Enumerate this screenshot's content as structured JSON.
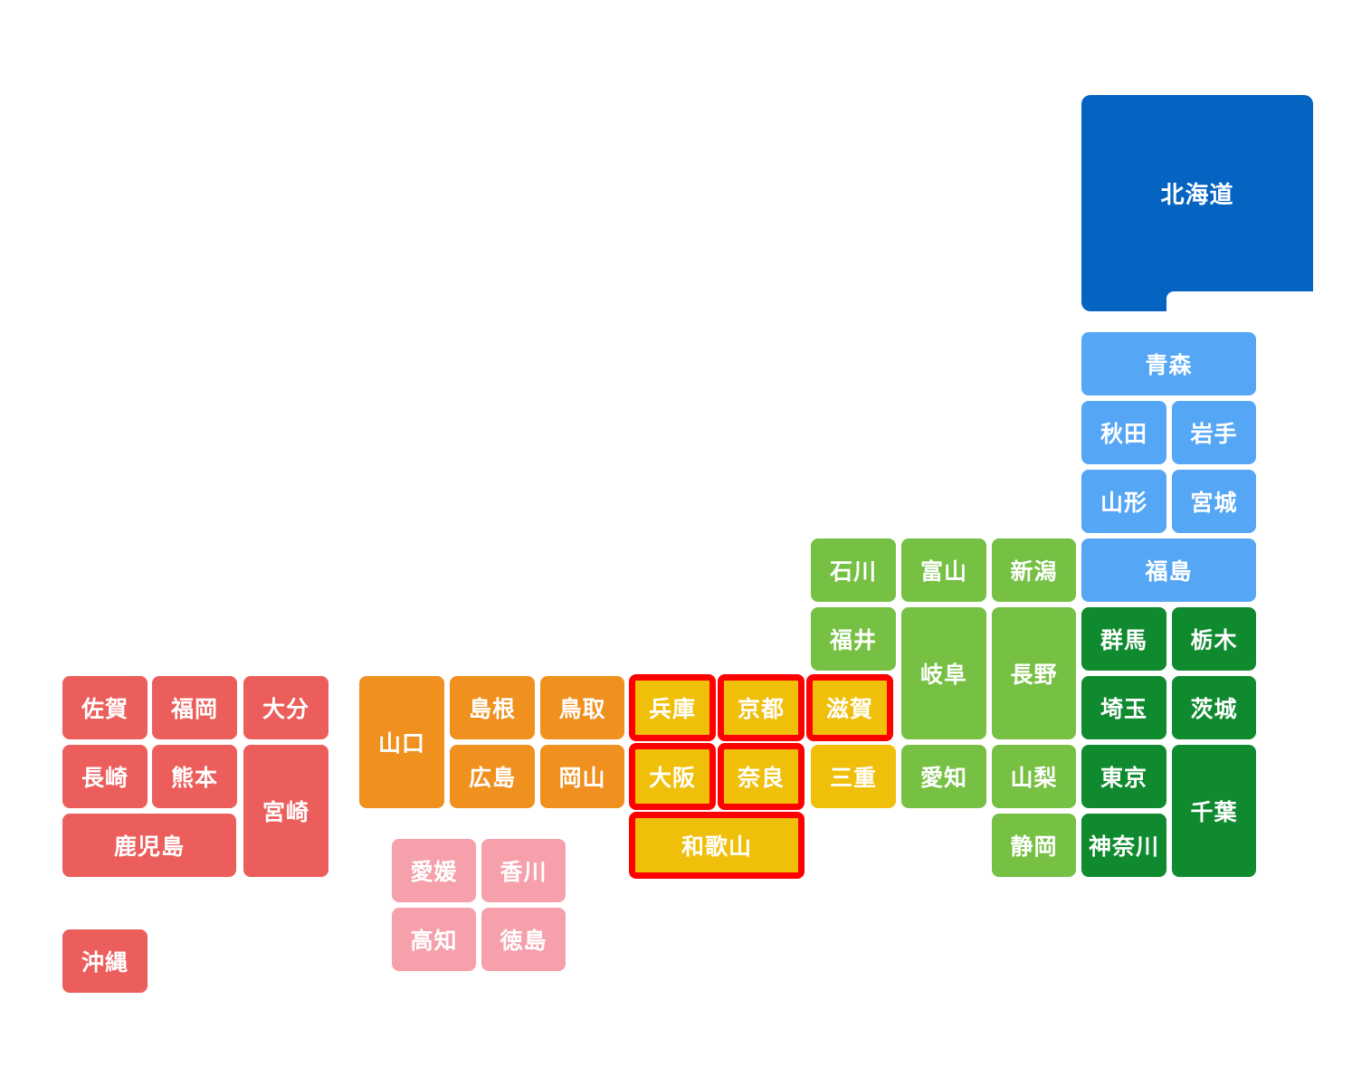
{
  "map": {
    "region_colors": {
      "hokkaido": "#0563C1",
      "tohoku": "#55A6F5",
      "kanto": "#0F8A2E",
      "chubu": "#76C043",
      "kinki": "#F0BF0A",
      "chugoku": "#F0901F",
      "shikoku": "#F5A0AB",
      "kyushu": "#EC5E5B"
    },
    "selected_border_color": "#FF0000",
    "prefectures": [
      {
        "key": "hokkaido",
        "label": "北海道",
        "region": "hokkaido",
        "selected": false
      },
      {
        "key": "aomori",
        "label": "青森",
        "region": "tohoku",
        "selected": false
      },
      {
        "key": "akita",
        "label": "秋田",
        "region": "tohoku",
        "selected": false
      },
      {
        "key": "iwate",
        "label": "岩手",
        "region": "tohoku",
        "selected": false
      },
      {
        "key": "yamagata",
        "label": "山形",
        "region": "tohoku",
        "selected": false
      },
      {
        "key": "miyagi",
        "label": "宮城",
        "region": "tohoku",
        "selected": false
      },
      {
        "key": "fukushima",
        "label": "福島",
        "region": "tohoku",
        "selected": false
      },
      {
        "key": "ishikawa",
        "label": "石川",
        "region": "chubu",
        "selected": false
      },
      {
        "key": "toyama",
        "label": "富山",
        "region": "chubu",
        "selected": false
      },
      {
        "key": "niigata",
        "label": "新潟",
        "region": "chubu",
        "selected": false
      },
      {
        "key": "fukui",
        "label": "福井",
        "region": "chubu",
        "selected": false
      },
      {
        "key": "gifu",
        "label": "岐阜",
        "region": "chubu",
        "selected": false
      },
      {
        "key": "nagano",
        "label": "長野",
        "region": "chubu",
        "selected": false
      },
      {
        "key": "aichi",
        "label": "愛知",
        "region": "chubu",
        "selected": false
      },
      {
        "key": "yamanashi",
        "label": "山梨",
        "region": "chubu",
        "selected": false
      },
      {
        "key": "shizuoka",
        "label": "静岡",
        "region": "chubu",
        "selected": false
      },
      {
        "key": "gunma",
        "label": "群馬",
        "region": "kanto",
        "selected": false
      },
      {
        "key": "tochigi",
        "label": "栃木",
        "region": "kanto",
        "selected": false
      },
      {
        "key": "saitama",
        "label": "埼玉",
        "region": "kanto",
        "selected": false
      },
      {
        "key": "ibaraki",
        "label": "茨城",
        "region": "kanto",
        "selected": false
      },
      {
        "key": "tokyo",
        "label": "東京",
        "region": "kanto",
        "selected": false
      },
      {
        "key": "chiba",
        "label": "千葉",
        "region": "kanto",
        "selected": false
      },
      {
        "key": "kanagawa",
        "label": "神奈川",
        "region": "kanto",
        "selected": false
      },
      {
        "key": "hyogo",
        "label": "兵庫",
        "region": "kinki",
        "selected": true
      },
      {
        "key": "kyoto",
        "label": "京都",
        "region": "kinki",
        "selected": true
      },
      {
        "key": "shiga",
        "label": "滋賀",
        "region": "kinki",
        "selected": true
      },
      {
        "key": "osaka",
        "label": "大阪",
        "region": "kinki",
        "selected": true
      },
      {
        "key": "nara",
        "label": "奈良",
        "region": "kinki",
        "selected": true
      },
      {
        "key": "mie",
        "label": "三重",
        "region": "kinki",
        "selected": false
      },
      {
        "key": "wakayama",
        "label": "和歌山",
        "region": "kinki",
        "selected": true
      },
      {
        "key": "yamaguchi",
        "label": "山口",
        "region": "chugoku",
        "selected": false
      },
      {
        "key": "shimane",
        "label": "島根",
        "region": "chugoku",
        "selected": false
      },
      {
        "key": "tottori",
        "label": "鳥取",
        "region": "chugoku",
        "selected": false
      },
      {
        "key": "hiroshima",
        "label": "広島",
        "region": "chugoku",
        "selected": false
      },
      {
        "key": "okayama",
        "label": "岡山",
        "region": "chugoku",
        "selected": false
      },
      {
        "key": "ehime",
        "label": "愛媛",
        "region": "shikoku",
        "selected": false
      },
      {
        "key": "kagawa",
        "label": "香川",
        "region": "shikoku",
        "selected": false
      },
      {
        "key": "kochi",
        "label": "高知",
        "region": "shikoku",
        "selected": false
      },
      {
        "key": "tokushima",
        "label": "徳島",
        "region": "shikoku",
        "selected": false
      },
      {
        "key": "saga",
        "label": "佐賀",
        "region": "kyushu",
        "selected": false
      },
      {
        "key": "fukuoka",
        "label": "福岡",
        "region": "kyushu",
        "selected": false
      },
      {
        "key": "oita",
        "label": "大分",
        "region": "kyushu",
        "selected": false
      },
      {
        "key": "nagasaki",
        "label": "長崎",
        "region": "kyushu",
        "selected": false
      },
      {
        "key": "kumamoto",
        "label": "熊本",
        "region": "kyushu",
        "selected": false
      },
      {
        "key": "miyazaki",
        "label": "宮崎",
        "region": "kyushu",
        "selected": false
      },
      {
        "key": "kagoshima",
        "label": "鹿児島",
        "region": "kyushu",
        "selected": false
      },
      {
        "key": "okinawa",
        "label": "沖縄",
        "region": "kyushu",
        "selected": false
      }
    ]
  }
}
